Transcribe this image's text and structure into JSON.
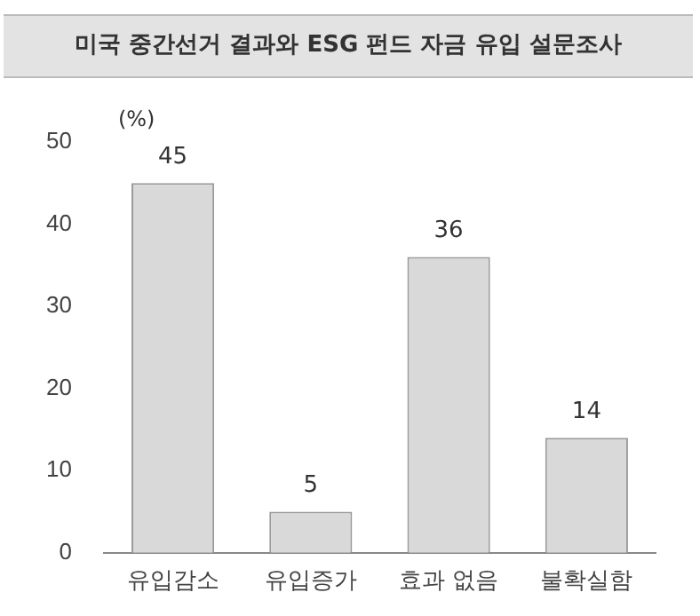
{
  "chart_data": {
    "type": "bar",
    "title": "미국 중간선거 결과와 ESG 펀드 자금 유입 설문조사",
    "ylabel": "(%)",
    "categories": [
      "유입감소",
      "유입증가",
      "효과 없음",
      "불확실함"
    ],
    "values": [
      45,
      5,
      36,
      14
    ],
    "color": "#d9d9d9",
    "ylim": [
      0,
      50
    ],
    "yticks": [
      0,
      10,
      20,
      30,
      40,
      50
    ],
    "grid": false,
    "data_labels": true
  }
}
